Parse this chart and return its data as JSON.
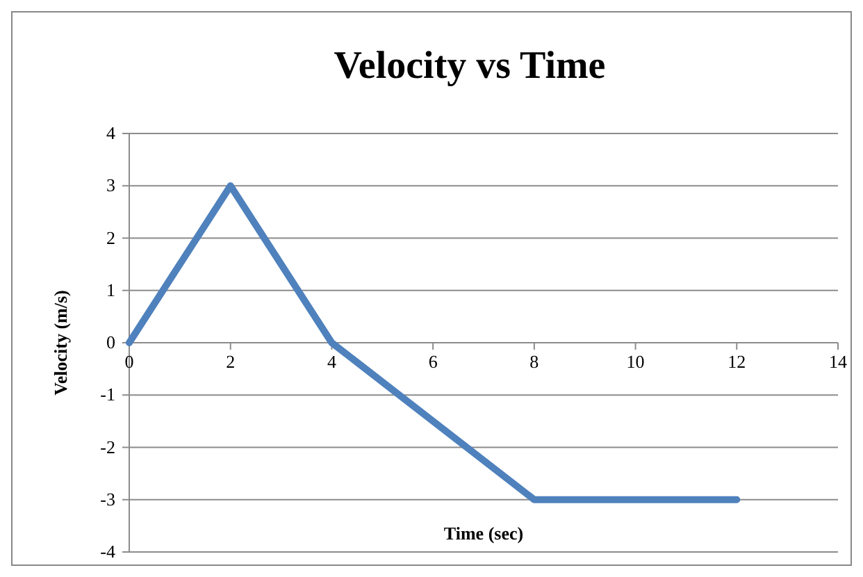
{
  "chart_data": {
    "type": "line",
    "title": "Velocity vs Time",
    "xlabel": "Time (sec)",
    "ylabel": "Velocity (m/s)",
    "x": [
      0,
      2,
      4,
      8,
      12
    ],
    "series": [
      {
        "color": "#4f81bd",
        "values": [
          0,
          3,
          0,
          -3,
          -3
        ]
      }
    ],
    "xlim": [
      0,
      14
    ],
    "xticks": [
      0,
      2,
      4,
      6,
      8,
      10,
      12,
      14
    ],
    "ylim": [
      -4,
      4
    ],
    "yticks": [
      -4,
      -3,
      -2,
      -1,
      0,
      1,
      2,
      3,
      4
    ],
    "grid": "y",
    "marker": "none",
    "line_style": "solid"
  }
}
